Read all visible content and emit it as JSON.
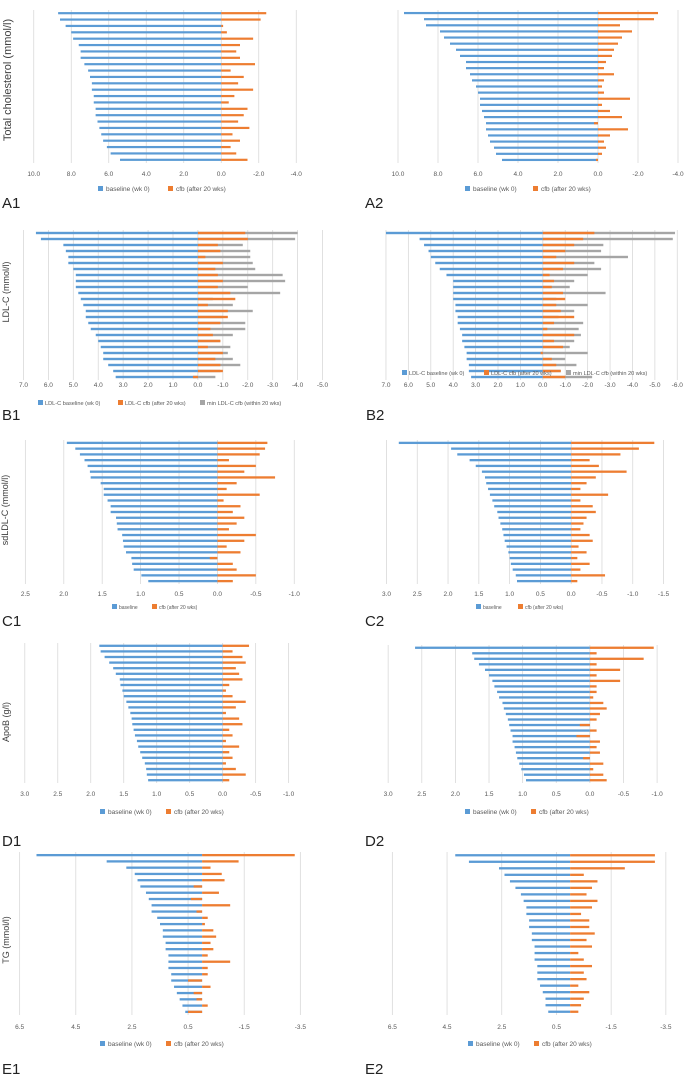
{
  "colors": {
    "baseline": "#5b9bd5",
    "cfb": "#ed7d31",
    "min": "#a5a5a5",
    "grid": "#d9d9d9",
    "text": "#595959",
    "label": "#222222"
  },
  "ylabels": {
    "A": "Total cholesterol (mmol/l)",
    "B": "LDL-C (mmol/l)",
    "C": "sdLDL-C (mmol/l)",
    "D": "ApoB (g/l)",
    "E": "TG (mmol/l)"
  },
  "chart_data": [
    {
      "id": "A1",
      "label": "A1",
      "type": "bar",
      "orientation": "horizontal",
      "x_reversed": true,
      "xticks": [
        10.0,
        8.0,
        6.0,
        4.0,
        2.0,
        0.0,
        -2.0,
        -4.0
      ],
      "xtick_labels": [
        "10.0",
        "8.0",
        "6.0",
        "4.0",
        "2.0",
        "0.0",
        "-2.0",
        "-4.0"
      ],
      "xlim": [
        11.0,
        -5.0
      ],
      "legend": [
        "baseline (wk 0)",
        "cfb (after 20 wks)"
      ],
      "series": [
        {
          "name": "baseline (wk 0)",
          "values": [
            8.7,
            8.6,
            8.3,
            8.0,
            7.9,
            7.6,
            7.5,
            7.5,
            7.3,
            7.1,
            7.0,
            6.9,
            6.9,
            6.8,
            6.8,
            6.7,
            6.7,
            6.6,
            6.5,
            6.4,
            6.3,
            6.1,
            5.9,
            5.4
          ]
        },
        {
          "name": "cfb (after 20 wks)",
          "values": [
            -2.4,
            -2.1,
            -0.1,
            -0.3,
            -1.7,
            -1.0,
            -0.8,
            -1.0,
            -1.8,
            -0.5,
            -1.2,
            -0.9,
            -1.7,
            -0.7,
            -0.4,
            -1.4,
            -1.2,
            -0.9,
            -1.5,
            -0.6,
            -1.0,
            -0.5,
            -0.8,
            -1.4
          ]
        }
      ]
    },
    {
      "id": "A2",
      "label": "A2",
      "type": "bar",
      "orientation": "horizontal",
      "x_reversed": true,
      "xticks": [
        10.0,
        8.0,
        6.0,
        4.0,
        2.0,
        0.0,
        -2.0,
        -4.0
      ],
      "xtick_labels": [
        "10.0",
        "8.0",
        "6.0",
        "4.0",
        "2.0",
        "0.0",
        "-2.0",
        "-4.0"
      ],
      "xlim": [
        11.0,
        -4.2
      ],
      "legend": [
        "baseline (wk 0)",
        "cfb (after 20 wks)"
      ],
      "series": [
        {
          "name": "baseline (wk 0)",
          "values": [
            9.7,
            8.7,
            8.6,
            7.9,
            7.7,
            7.4,
            7.1,
            6.9,
            6.6,
            6.6,
            6.4,
            6.3,
            6.1,
            6.0,
            5.9,
            5.9,
            5.8,
            5.7,
            5.6,
            5.6,
            5.5,
            5.4,
            5.2,
            5.1,
            4.8
          ]
        },
        {
          "name": "cfb (after 20 wks)",
          "values": [
            -3.0,
            -2.8,
            -1.1,
            -1.7,
            -1.2,
            -1.0,
            -0.8,
            -0.7,
            -0.4,
            -0.3,
            -0.8,
            -0.3,
            -0.2,
            -0.3,
            -1.6,
            -0.2,
            -0.6,
            -1.2,
            0.2,
            -1.5,
            -0.6,
            -0.3,
            -0.4,
            -0.2,
            0.1
          ]
        }
      ]
    },
    {
      "id": "B1",
      "label": "B1",
      "type": "bar",
      "orientation": "horizontal",
      "x_reversed": true,
      "xticks": [
        7.0,
        6.0,
        5.0,
        4.0,
        3.0,
        2.0,
        1.0,
        0.0,
        -1.0,
        -2.0,
        -3.0,
        -4.0,
        -5.0
      ],
      "xtick_labels": [
        "7.0",
        "6.0",
        "5.0",
        "4.0",
        "3.0",
        "2.0",
        "1.0",
        "0.0",
        "-1.0",
        "-2.0",
        "-3.0",
        "-4.0",
        "-5.0"
      ],
      "xlim": [
        7.3,
        -5.3
      ],
      "legend": [
        "LDL-C baseline (wk 0)",
        "LDL-C cfb (after 20 wks)",
        "min LDL-C cfb (within 20 wks)"
      ],
      "series": [
        {
          "name": "LDL-C baseline (wk 0)",
          "values": [
            6.5,
            6.3,
            5.4,
            5.3,
            5.2,
            5.2,
            5.0,
            4.9,
            4.9,
            4.9,
            4.8,
            4.7,
            4.6,
            4.5,
            4.5,
            4.4,
            4.3,
            4.1,
            4.0,
            3.9,
            3.8,
            3.8,
            3.6,
            3.4,
            3.3
          ]
        },
        {
          "name": "LDL-C cfb (after 20 wks)",
          "values": [
            -1.9,
            -2.0,
            -0.8,
            -0.9,
            -0.3,
            -1.0,
            -0.7,
            -0.8,
            -1.0,
            -0.8,
            -1.3,
            -1.5,
            -0.4,
            -1.2,
            -1.2,
            -0.9,
            -0.5,
            -0.6,
            -0.9,
            -0.4,
            -1.0,
            -0.7,
            -0.9,
            -1.0,
            0.2
          ]
        },
        {
          "name": "min LDL-C cfb (within 20 wks)",
          "values": [
            -4.0,
            -3.9,
            -1.8,
            -2.1,
            -2.1,
            -2.2,
            -2.3,
            -3.4,
            -3.5,
            -2.0,
            -3.3,
            -0.6,
            -1.4,
            -2.2,
            -1.0,
            -1.9,
            -1.9,
            -1.4,
            -0.9,
            -1.3,
            -1.2,
            -1.4,
            -1.7,
            -0.9,
            -0.7
          ]
        }
      ]
    },
    {
      "id": "B2",
      "label": "B2",
      "type": "bar",
      "orientation": "horizontal",
      "x_reversed": true,
      "xticks": [
        7.0,
        6.0,
        5.0,
        4.0,
        3.0,
        2.0,
        1.0,
        0.0,
        -1.0,
        -2.0,
        -3.0,
        -4.0,
        -5.0,
        -6.0
      ],
      "xtick_labels": [
        "7.0",
        "6.0",
        "5.0",
        "4.0",
        "3.0",
        "2.0",
        "1.0",
        "0.0",
        "-1.0",
        "-2.0",
        "-3.0",
        "-4.0",
        "-5.0",
        "-6.0"
      ],
      "xlim": [
        7.4,
        -6.3
      ],
      "legend": [
        "LDL-C baseline (wk 0)",
        "LDL-C cfb (after 20 wks)",
        "min LDL-C cfb (within 20 wks)"
      ],
      "series": [
        {
          "name": "LDL-C baseline (wk 0)",
          "values": [
            7.0,
            5.5,
            5.3,
            5.1,
            5.0,
            4.8,
            4.6,
            4.3,
            4.0,
            4.0,
            4.0,
            4.0,
            3.9,
            3.9,
            3.8,
            3.8,
            3.7,
            3.6,
            3.6,
            3.5,
            3.4,
            3.4,
            3.3,
            3.3,
            3.2
          ]
        },
        {
          "name": "LDL-C cfb (after 20 wks)",
          "values": [
            -2.3,
            -1.8,
            -1.4,
            -1.0,
            -0.6,
            -1.4,
            -0.9,
            -0.3,
            -0.5,
            -0.4,
            -0.9,
            -1.0,
            -0.6,
            -0.8,
            -1.4,
            -0.5,
            -0.2,
            -1.4,
            -0.5,
            -0.9,
            0.1,
            -0.4,
            -0.6,
            -0.8,
            -1.0
          ]
        },
        {
          "name": "min LDL-C cfb (within 20 wks)",
          "values": [
            -5.9,
            -5.8,
            -2.7,
            -2.6,
            -3.8,
            -2.3,
            -2.6,
            -2.0,
            -1.4,
            -1.2,
            -2.8,
            -0.6,
            -2.0,
            -1.4,
            -0.7,
            -1.8,
            -1.6,
            -1.7,
            -1.4,
            -1.2,
            -2.0,
            -1.0,
            -1.5,
            -0.8,
            -2.2
          ]
        }
      ]
    },
    {
      "id": "C1",
      "label": "C1",
      "type": "bar",
      "orientation": "horizontal",
      "x_reversed": true,
      "xticks": [
        2.5,
        2.0,
        1.5,
        1.0,
        0.5,
        0.0,
        -0.5,
        -1.0
      ],
      "xtick_labels": [
        "2.5",
        "2.0",
        "1.5",
        "1.0",
        "0.5",
        "0.0",
        "-0.5",
        "-1.0"
      ],
      "xlim": [
        2.7,
        -1.4
      ],
      "legend": [
        "baseline",
        "cfb (after 20 wks)"
      ],
      "series": [
        {
          "name": "baseline",
          "values": [
            1.96,
            1.85,
            1.79,
            1.73,
            1.69,
            1.66,
            1.65,
            1.52,
            1.48,
            1.48,
            1.43,
            1.39,
            1.39,
            1.32,
            1.31,
            1.3,
            1.24,
            1.23,
            1.22,
            1.19,
            1.12,
            1.11,
            1.09,
            0.99,
            0.9
          ]
        },
        {
          "name": "cfb (after 20 wks)",
          "values": [
            -0.65,
            -0.62,
            -0.55,
            -0.15,
            -0.5,
            -0.35,
            -0.75,
            -0.25,
            -0.12,
            -0.55,
            -0.08,
            -0.3,
            -0.2,
            -0.35,
            -0.25,
            -0.15,
            -0.5,
            -0.35,
            -0.12,
            -0.3,
            0.1,
            -0.2,
            -0.25,
            -0.5,
            -0.2
          ]
        }
      ]
    },
    {
      "id": "C2",
      "label": "C2",
      "type": "bar",
      "orientation": "horizontal",
      "x_reversed": true,
      "xticks": [
        3.0,
        2.5,
        2.0,
        1.5,
        1.0,
        0.5,
        0.0,
        -0.5,
        -1.0,
        -1.5
      ],
      "xtick_labels": [
        "3.0",
        "2.5",
        "2.0",
        "1.5",
        "1.0",
        "0.5",
        "0.0",
        "-0.5",
        "-1.0",
        "-1.5"
      ],
      "xlim": [
        3.3,
        -1.8
      ],
      "legend": [
        "baseline",
        "cfb (after 20 wks)"
      ],
      "series": [
        {
          "name": "baseline",
          "values": [
            2.8,
            1.95,
            1.85,
            1.65,
            1.55,
            1.45,
            1.4,
            1.38,
            1.35,
            1.32,
            1.28,
            1.25,
            1.2,
            1.18,
            1.15,
            1.12,
            1.1,
            1.08,
            1.05,
            1.02,
            1.0,
            0.98,
            0.95,
            0.9,
            0.88
          ]
        },
        {
          "name": "cfb (after 20 wks)",
          "values": [
            -1.35,
            -1.1,
            -0.8,
            -0.3,
            -0.45,
            -0.9,
            -0.4,
            -0.25,
            -0.15,
            -0.6,
            -0.15,
            -0.35,
            -0.4,
            -0.25,
            -0.2,
            -0.15,
            -0.3,
            -0.35,
            -0.12,
            -0.25,
            -0.1,
            -0.3,
            -0.15,
            -0.55,
            -0.1
          ]
        }
      ]
    },
    {
      "id": "D1",
      "label": "D1",
      "type": "bar",
      "orientation": "horizontal",
      "x_reversed": true,
      "xticks": [
        3.0,
        2.5,
        2.0,
        1.5,
        1.0,
        0.5,
        0.0,
        -0.5,
        -1.0
      ],
      "xtick_labels": [
        "3.0",
        "2.5",
        "2.0",
        "1.5",
        "1.0",
        "0.5",
        "0.0",
        "-0.5",
        "-1.0"
      ],
      "xlim": [
        3.3,
        -1.4
      ],
      "legend": [
        "baseline (wk 0)",
        "cfb (after 20 wks)"
      ],
      "series": [
        {
          "name": "baseline (wk 0)",
          "values": [
            1.87,
            1.85,
            1.79,
            1.72,
            1.66,
            1.62,
            1.56,
            1.55,
            1.52,
            1.5,
            1.46,
            1.43,
            1.4,
            1.38,
            1.37,
            1.35,
            1.33,
            1.3,
            1.28,
            1.25,
            1.22,
            1.18,
            1.16,
            1.15,
            1.13
          ]
        },
        {
          "name": "cfb (after 20 wks)",
          "values": [
            -0.4,
            -0.15,
            -0.3,
            -0.35,
            -0.2,
            -0.25,
            -0.3,
            -0.1,
            -0.05,
            -0.15,
            -0.35,
            -0.2,
            -0.05,
            -0.25,
            -0.3,
            -0.1,
            -0.15,
            -0.05,
            -0.25,
            -0.1,
            -0.15,
            -0.05,
            -0.2,
            -0.35,
            -0.1
          ]
        }
      ]
    },
    {
      "id": "D2",
      "label": "D2",
      "type": "bar",
      "orientation": "horizontal",
      "x_reversed": true,
      "xticks": [
        3.0,
        2.5,
        2.0,
        1.5,
        1.0,
        0.5,
        0.0,
        -0.5,
        -1.0
      ],
      "xtick_labels": [
        "3.0",
        "2.5",
        "2.0",
        "1.5",
        "1.0",
        "0.5",
        "0.0",
        "-0.5",
        "-1.0"
      ],
      "xlim": [
        3.3,
        -1.4
      ],
      "legend": [
        "baseline (wk 0)",
        "cfb (after 20 wks)"
      ],
      "series": [
        {
          "name": "baseline (wk 0)",
          "values": [
            2.6,
            1.75,
            1.72,
            1.65,
            1.56,
            1.5,
            1.45,
            1.42,
            1.38,
            1.35,
            1.3,
            1.28,
            1.25,
            1.22,
            1.2,
            1.18,
            1.15,
            1.15,
            1.12,
            1.1,
            1.08,
            1.05,
            1.02,
            0.98,
            0.95
          ]
        },
        {
          "name": "cfb (after 20 wks)",
          "values": [
            -0.95,
            -0.1,
            -0.8,
            -0.1,
            -0.45,
            -0.1,
            -0.45,
            -0.1,
            -0.1,
            -0.05,
            -0.2,
            -0.25,
            -0.15,
            -0.1,
            0.15,
            -0.1,
            0.2,
            -0.15,
            -0.1,
            -0.15,
            0.1,
            -0.2,
            -0.05,
            -0.2,
            -0.25
          ]
        }
      ]
    },
    {
      "id": "E1",
      "label": "E1",
      "type": "bar",
      "orientation": "horizontal",
      "x_reversed": true,
      "xticks": [
        6.5,
        4.5,
        2.5,
        0.5,
        -1.5,
        -3.5
      ],
      "xtick_labels": [
        "6.5",
        "4.5",
        "2.5",
        "0.5",
        "-1.5",
        "-3.5"
      ],
      "xlim": [
        7.2,
        -4.2
      ],
      "legend": [
        "baseline (wk 0)",
        "cfb (after 20 wks)"
      ],
      "series": [
        {
          "name": "baseline (wk 0)",
          "values": [
            5.9,
            3.4,
            2.7,
            2.4,
            2.3,
            2.2,
            2.0,
            1.9,
            1.8,
            1.8,
            1.6,
            1.5,
            1.4,
            1.4,
            1.3,
            1.3,
            1.2,
            1.2,
            1.2,
            1.1,
            1.1,
            1.0,
            0.9,
            0.8,
            0.7,
            0.6
          ]
        },
        {
          "name": "cfb (after 20 wks)",
          "values": [
            -3.3,
            -1.3,
            -0.3,
            -0.7,
            -0.8,
            0.3,
            -0.6,
            0.4,
            -1.0,
            0.2,
            -0.2,
            -0.1,
            -0.4,
            -0.5,
            -0.3,
            -0.4,
            -0.2,
            -1.0,
            -0.2,
            -0.2,
            0.5,
            -0.3,
            0.3,
            0.2,
            -0.2,
            0.5
          ]
        }
      ]
    },
    {
      "id": "E2",
      "label": "E2",
      "type": "bar",
      "orientation": "horizontal",
      "x_reversed": true,
      "xticks": [
        6.5,
        4.5,
        2.5,
        0.5,
        -1.5,
        -3.5
      ],
      "xtick_labels": [
        "6.5",
        "4.5",
        "2.5",
        "0.5",
        "-1.5",
        "-3.5"
      ],
      "xlim": [
        7.5,
        -4.2
      ],
      "legend": [
        "baseline (wk 0)",
        "cfb (after 20 wks)"
      ],
      "series": [
        {
          "name": "baseline (wk 0)",
          "values": [
            4.2,
            3.7,
            2.6,
            2.4,
            2.2,
            2.0,
            1.8,
            1.7,
            1.6,
            1.6,
            1.5,
            1.5,
            1.4,
            1.4,
            1.3,
            1.3,
            1.3,
            1.2,
            1.2,
            1.2,
            1.1,
            1.0,
            0.9,
            0.9,
            0.8
          ]
        },
        {
          "name": "cfb (after 20 wks)",
          "values": [
            -3.1,
            -3.1,
            -2.0,
            -0.5,
            -1.0,
            -0.8,
            -0.6,
            -1.0,
            -0.8,
            -0.4,
            -0.7,
            -0.7,
            -0.9,
            -0.6,
            -0.8,
            -0.3,
            -0.5,
            -0.8,
            -0.5,
            -0.6,
            -0.3,
            -0.7,
            -0.5,
            -0.4,
            -0.3
          ]
        }
      ]
    }
  ]
}
